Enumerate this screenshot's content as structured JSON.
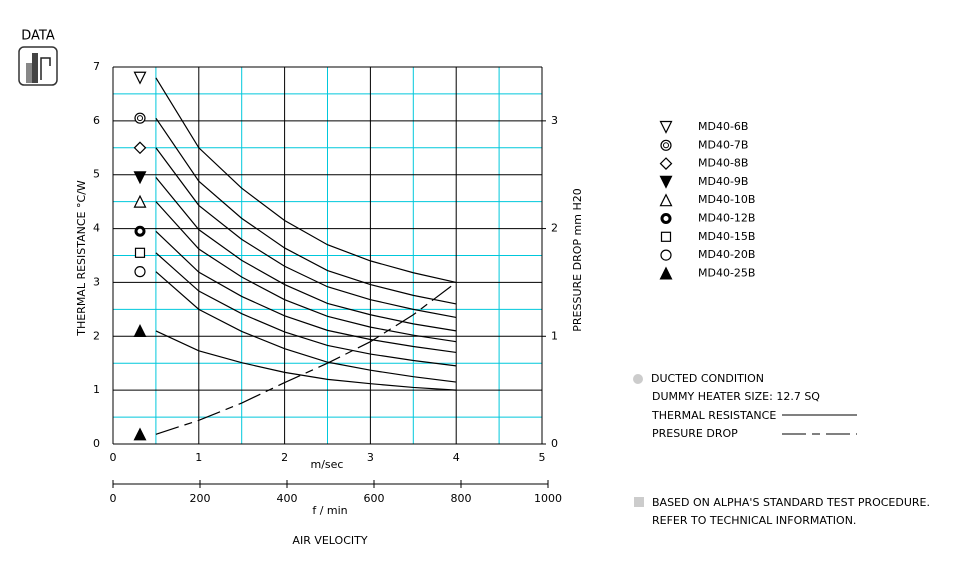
{
  "header": {
    "label": "DATA"
  },
  "chart_data": {
    "type": "line",
    "xlabel": "m/sec",
    "x2label": "f / min",
    "axis_title": "AIR VELOCITY",
    "ylabel": "THERMAL  RESISTANCE   °C/W",
    "y2label": "PRESSURE  DROP   mm H20",
    "x": [
      0.5,
      1,
      1.5,
      2,
      2.5,
      3,
      3.5,
      4
    ],
    "xlim": [
      0,
      5
    ],
    "xticks": [
      0,
      1,
      2,
      3,
      4,
      5
    ],
    "xminor": [
      0.5,
      1.5,
      2.5,
      3.5,
      4.5
    ],
    "x2lim": [
      0,
      1000
    ],
    "x2ticks": [
      0,
      200,
      400,
      600,
      800,
      1000
    ],
    "ylim": [
      0,
      7
    ],
    "yticks": [
      0,
      1,
      2,
      3,
      4,
      5,
      6,
      7
    ],
    "yminor": [
      0.5,
      1.5,
      2.5,
      3.5,
      4.5,
      5.5,
      6.5
    ],
    "y2lim": [
      0,
      3.5
    ],
    "y2ticks": [
      0,
      1,
      2,
      3
    ],
    "grid": true,
    "grid_color": "#000000",
    "minor_grid_color": "#00c8dc",
    "series": [
      {
        "name": "MD40-6B",
        "marker": "triangle-down",
        "color": "#000000",
        "values": [
          6.8,
          5.5,
          4.75,
          4.15,
          3.7,
          3.4,
          3.18,
          3.0
        ]
      },
      {
        "name": "MD40-7B",
        "marker": "double-circle",
        "color": "#000000",
        "values": [
          6.05,
          4.88,
          4.19,
          3.64,
          3.22,
          2.96,
          2.76,
          2.6
        ]
      },
      {
        "name": "MD40-8B",
        "marker": "diamond",
        "color": "#000000",
        "values": [
          5.5,
          4.43,
          3.8,
          3.3,
          2.92,
          2.68,
          2.5,
          2.35
        ]
      },
      {
        "name": "MD40-9B",
        "marker": "triangle-down-filled",
        "color": "#000000",
        "values": [
          4.95,
          3.98,
          3.41,
          2.96,
          2.61,
          2.4,
          2.23,
          2.1
        ]
      },
      {
        "name": "MD40-10B",
        "marker": "triangle",
        "color": "#000000",
        "values": [
          4.5,
          3.62,
          3.1,
          2.68,
          2.37,
          2.17,
          2.02,
          1.9
        ]
      },
      {
        "name": "MD40-12B",
        "marker": "thick-circle",
        "color": "#000000",
        "values": [
          3.95,
          3.19,
          2.74,
          2.38,
          2.11,
          1.94,
          1.81,
          1.7
        ]
      },
      {
        "name": "MD40-15B",
        "marker": "square",
        "color": "#000000",
        "values": [
          3.55,
          2.84,
          2.42,
          2.08,
          1.83,
          1.67,
          1.55,
          1.45
        ]
      },
      {
        "name": "MD40-20B",
        "marker": "circle",
        "color": "#000000",
        "values": [
          3.2,
          2.5,
          2.09,
          1.77,
          1.52,
          1.37,
          1.25,
          1.15
        ]
      },
      {
        "name": "MD40-25B",
        "marker": "triangle-filled",
        "color": "#000000",
        "values": [
          2.1,
          1.73,
          1.51,
          1.33,
          1.2,
          1.12,
          1.05,
          1.0
        ]
      }
    ],
    "pressure": {
      "axis": "y2",
      "marker": "triangle-filled",
      "line_style": "dashed",
      "color": "#000000",
      "values": [
        0.09,
        0.22,
        0.38,
        0.57,
        0.75,
        0.95,
        1.2,
        1.5
      ]
    },
    "notes": {
      "condition": "DUCTED CONDITION",
      "heater": "DUMMY HEATER SIZE: 12.7 SQ",
      "thermal_key": "THERMAL RESISTANCE",
      "pressure_key": "PRESURE DROP",
      "footnote": [
        "BASED ON ALPHA'S STANDARD TEST PROCEDURE.",
        "REFER TO TECHNICAL INFORMATION."
      ]
    }
  }
}
